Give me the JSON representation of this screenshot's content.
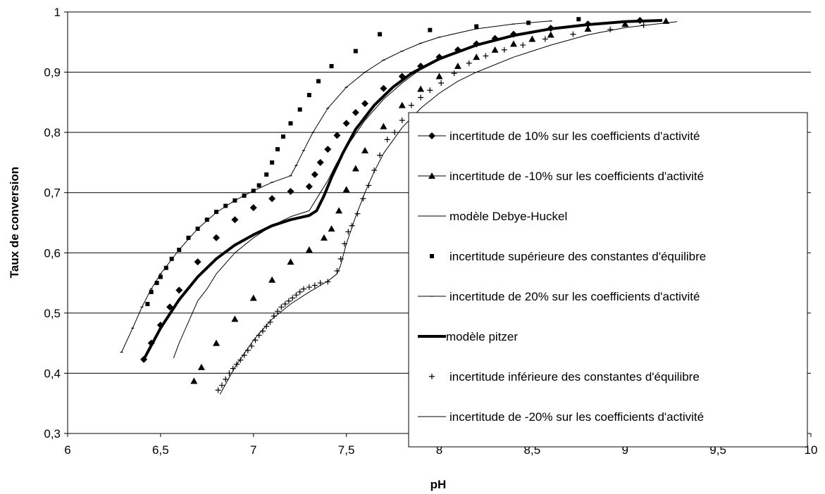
{
  "chart_data": {
    "type": "line",
    "title": "",
    "xlabel": "pH",
    "ylabel": "Taux de conversion",
    "xlim": [
      6,
      10
    ],
    "ylim": [
      0.3,
      1
    ],
    "grid": "horizontal",
    "legend_position": "right",
    "x_ticks": [
      "6",
      "6,5",
      "7",
      "7,5",
      "8",
      "8,5",
      "9",
      "9,5",
      "10"
    ],
    "y_ticks": [
      "0,3",
      "0,4",
      "0,5",
      "0,6",
      "0,7",
      "0,8",
      "0,9",
      "1"
    ],
    "series": [
      {
        "name": "incertitude de  10% sur les coefficients d'activité",
        "marker": "diamond",
        "line": "none",
        "x": [
          6.41,
          6.45,
          6.5,
          6.55,
          6.6,
          6.7,
          6.8,
          6.9,
          7.0,
          7.1,
          7.2,
          7.3,
          7.33,
          7.36,
          7.4,
          7.45,
          7.5,
          7.55,
          7.6,
          7.7,
          7.8,
          7.9,
          8.0,
          8.1,
          8.2,
          8.3,
          8.4,
          8.6,
          8.8,
          9.08
        ],
        "y": [
          0.423,
          0.45,
          0.48,
          0.51,
          0.538,
          0.585,
          0.625,
          0.655,
          0.675,
          0.69,
          0.702,
          0.71,
          0.73,
          0.75,
          0.772,
          0.795,
          0.815,
          0.833,
          0.848,
          0.873,
          0.893,
          0.91,
          0.925,
          0.937,
          0.947,
          0.956,
          0.963,
          0.973,
          0.98,
          0.986
        ]
      },
      {
        "name": "incertitude de -10% sur les coefficients d'activité",
        "marker": "triangle",
        "line": "none",
        "x": [
          6.68,
          6.72,
          6.8,
          6.9,
          7.0,
          7.1,
          7.2,
          7.3,
          7.38,
          7.42,
          7.46,
          7.5,
          7.55,
          7.6,
          7.7,
          7.8,
          7.9,
          8.0,
          8.1,
          8.2,
          8.3,
          8.4,
          8.5,
          8.6,
          8.8,
          9.0,
          9.22
        ],
        "y": [
          0.387,
          0.41,
          0.45,
          0.49,
          0.525,
          0.555,
          0.585,
          0.605,
          0.625,
          0.64,
          0.67,
          0.705,
          0.74,
          0.77,
          0.81,
          0.845,
          0.872,
          0.893,
          0.91,
          0.925,
          0.937,
          0.947,
          0.955,
          0.962,
          0.972,
          0.98,
          0.985
        ]
      },
      {
        "name": "modèle Debye-Huckel",
        "marker": "none",
        "line": "thin",
        "x": [
          6.57,
          6.6,
          6.65,
          6.7,
          6.75,
          6.8,
          6.9,
          7.0,
          7.1,
          7.2,
          7.3,
          7.33,
          7.36,
          7.4,
          7.45,
          7.5,
          7.6,
          7.7,
          7.8,
          7.9,
          8.0,
          8.2,
          8.4,
          8.6,
          8.8,
          9.0,
          9.15
        ],
        "y": [
          0.425,
          0.45,
          0.485,
          0.52,
          0.54,
          0.565,
          0.6,
          0.625,
          0.645,
          0.66,
          0.67,
          0.685,
          0.7,
          0.72,
          0.75,
          0.775,
          0.82,
          0.855,
          0.882,
          0.905,
          0.922,
          0.945,
          0.962,
          0.972,
          0.979,
          0.984,
          0.986
        ]
      },
      {
        "name": "incertitude supérieure des constantes d'équilibre",
        "marker": "square",
        "line": "none",
        "x": [
          6.43,
          6.45,
          6.48,
          6.5,
          6.53,
          6.56,
          6.6,
          6.65,
          6.7,
          6.75,
          6.8,
          6.85,
          6.9,
          6.95,
          7.0,
          7.03,
          7.07,
          7.1,
          7.13,
          7.16,
          7.2,
          7.25,
          7.3,
          7.35,
          7.42,
          7.55,
          7.68,
          7.95,
          8.2,
          8.48,
          8.75
        ],
        "y": [
          0.515,
          0.535,
          0.55,
          0.56,
          0.575,
          0.59,
          0.605,
          0.625,
          0.64,
          0.655,
          0.668,
          0.678,
          0.687,
          0.695,
          0.703,
          0.712,
          0.73,
          0.75,
          0.772,
          0.793,
          0.815,
          0.838,
          0.862,
          0.885,
          0.91,
          0.935,
          0.963,
          0.97,
          0.976,
          0.982,
          0.988
        ]
      },
      {
        "name": "incertitude de 20% sur les coefficients d'activité",
        "marker": "dash",
        "line": "thin",
        "x": [
          6.29,
          6.35,
          6.4,
          6.45,
          6.5,
          6.6,
          6.7,
          6.8,
          6.9,
          7.0,
          7.1,
          7.2,
          7.23,
          7.27,
          7.32,
          7.4,
          7.5,
          7.6,
          7.7,
          7.8,
          7.9,
          8.0,
          8.2,
          8.4,
          8.6
        ],
        "y": [
          0.435,
          0.475,
          0.51,
          0.54,
          0.565,
          0.605,
          0.64,
          0.667,
          0.687,
          0.703,
          0.717,
          0.728,
          0.745,
          0.77,
          0.8,
          0.84,
          0.875,
          0.9,
          0.92,
          0.935,
          0.948,
          0.958,
          0.972,
          0.98,
          0.985
        ]
      },
      {
        "name": "modèle pitzer",
        "marker": "none",
        "line": "thick",
        "x": [
          6.41,
          6.5,
          6.6,
          6.7,
          6.8,
          6.9,
          7.0,
          7.1,
          7.2,
          7.3,
          7.34,
          7.38,
          7.42,
          7.48,
          7.55,
          7.65,
          7.75,
          7.85,
          8.0,
          8.2,
          8.4,
          8.6,
          8.8,
          9.0,
          9.2
        ],
        "y": [
          0.423,
          0.475,
          0.522,
          0.56,
          0.59,
          0.613,
          0.63,
          0.645,
          0.655,
          0.662,
          0.67,
          0.695,
          0.725,
          0.765,
          0.805,
          0.845,
          0.875,
          0.898,
          0.922,
          0.945,
          0.961,
          0.972,
          0.979,
          0.984,
          0.986
        ]
      },
      {
        "name": "incertitude inférieure des constantes d'équilibre",
        "marker": "plus",
        "line": "none",
        "x": [
          6.81,
          6.83,
          6.85,
          6.87,
          6.89,
          6.91,
          6.93,
          6.95,
          6.97,
          6.99,
          7.01,
          7.03,
          7.05,
          7.07,
          7.09,
          7.11,
          7.13,
          7.15,
          7.17,
          7.19,
          7.21,
          7.23,
          7.25,
          7.27,
          7.3,
          7.33,
          7.36,
          7.4,
          7.45,
          7.47,
          7.49,
          7.51,
          7.53,
          7.56,
          7.59,
          7.62,
          7.65,
          7.68,
          7.72,
          7.76,
          7.8,
          7.85,
          7.9,
          7.95,
          8.01,
          8.08,
          8.16,
          8.25,
          8.35,
          8.45,
          8.57,
          8.72,
          8.92,
          9.1
        ],
        "y": [
          0.372,
          0.38,
          0.39,
          0.4,
          0.408,
          0.415,
          0.422,
          0.43,
          0.438,
          0.445,
          0.455,
          0.463,
          0.47,
          0.478,
          0.485,
          0.495,
          0.503,
          0.51,
          0.515,
          0.52,
          0.525,
          0.53,
          0.535,
          0.54,
          0.543,
          0.546,
          0.55,
          0.552,
          0.57,
          0.59,
          0.615,
          0.635,
          0.645,
          0.665,
          0.69,
          0.712,
          0.737,
          0.762,
          0.788,
          0.8,
          0.82,
          0.845,
          0.858,
          0.87,
          0.882,
          0.898,
          0.915,
          0.927,
          0.937,
          0.945,
          0.955,
          0.963,
          0.971,
          0.978
        ]
      },
      {
        "name": "incertitude de -20% sur les coefficients d'activité",
        "marker": "none",
        "line": "thin",
        "x": [
          6.82,
          6.9,
          7.0,
          7.1,
          7.2,
          7.3,
          7.4,
          7.45,
          7.47,
          7.5,
          7.55,
          7.6,
          7.65,
          7.7,
          7.8,
          7.9,
          8.0,
          8.1,
          8.2,
          8.4,
          8.6,
          8.8,
          9.0,
          9.28
        ],
        "y": [
          0.365,
          0.41,
          0.455,
          0.49,
          0.515,
          0.535,
          0.553,
          0.565,
          0.58,
          0.615,
          0.66,
          0.7,
          0.735,
          0.765,
          0.808,
          0.84,
          0.865,
          0.885,
          0.9,
          0.925,
          0.945,
          0.962,
          0.974,
          0.984
        ]
      }
    ]
  }
}
